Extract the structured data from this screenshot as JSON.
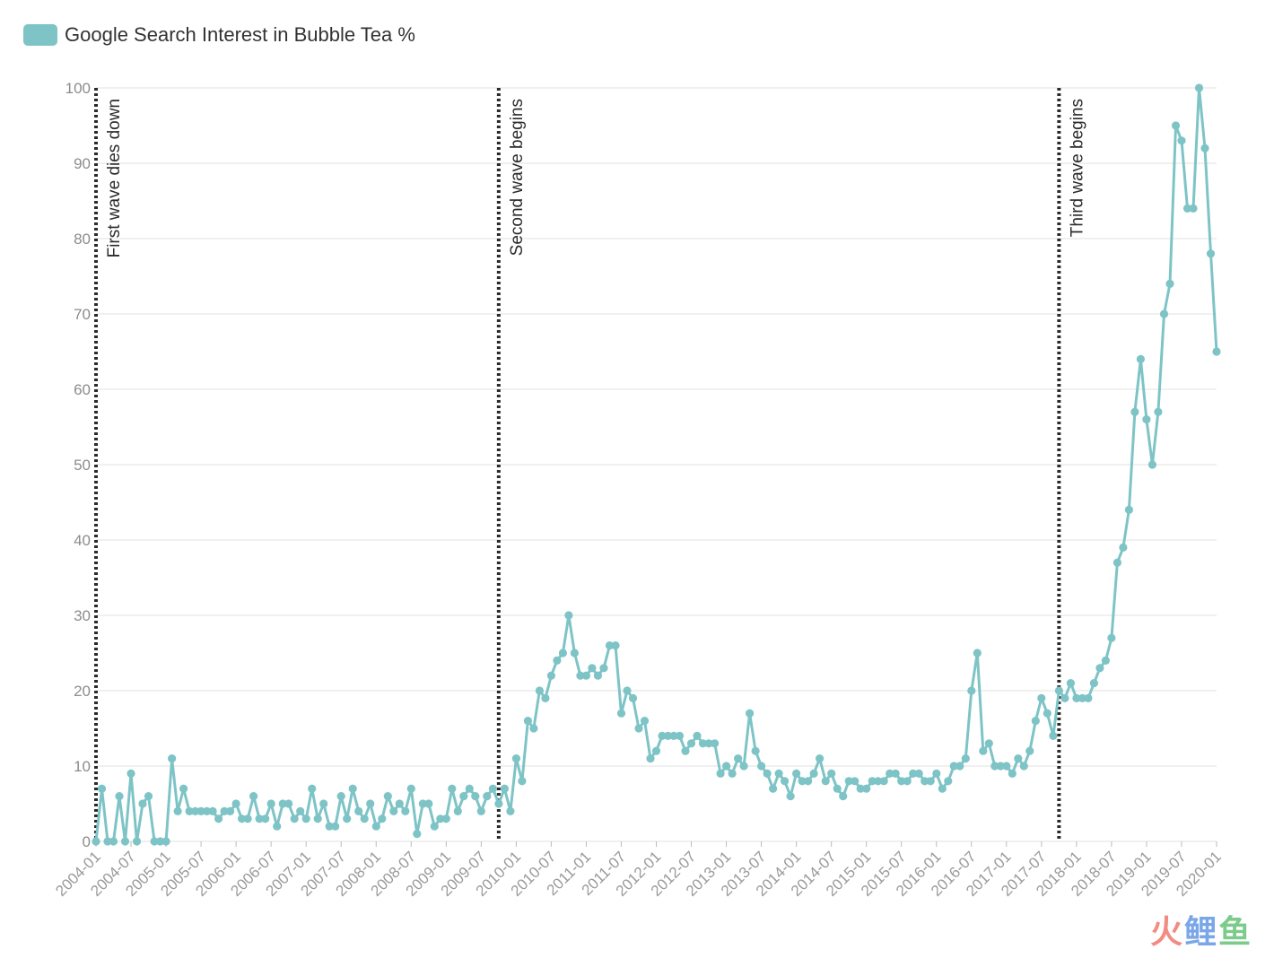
{
  "legend": {
    "label": "Google Search Interest in Bubble Tea %"
  },
  "watermark": {
    "c1": "火",
    "c2": "鲤",
    "c3": "鱼"
  },
  "colors": {
    "series": "#7ec4c6",
    "grid": "#e8e8e8",
    "annotation_line": "#2b2b2b"
  },
  "chart_data": {
    "type": "line",
    "title": "",
    "xlabel": "",
    "ylabel": "",
    "ylim": [
      0,
      100
    ],
    "yticks": [
      0,
      10,
      20,
      30,
      40,
      50,
      60,
      70,
      80,
      90,
      100
    ],
    "grid": true,
    "legend_position": "top-left",
    "x_start": "2004-01",
    "x_end": "2020-01",
    "xticks": [
      "2004-01",
      "2004-07",
      "2005-01",
      "2005-07",
      "2006-01",
      "2006-07",
      "2007-01",
      "2007-07",
      "2008-01",
      "2008-07",
      "2009-01",
      "2009-07",
      "2010-01",
      "2010-07",
      "2011-01",
      "2011-07",
      "2012-01",
      "2012-07",
      "2013-01",
      "2013-07",
      "2014-01",
      "2014-07",
      "2015-01",
      "2015-07",
      "2016-01",
      "2016-07",
      "2017-01",
      "2017-07",
      "2018-01",
      "2018-07",
      "2019-01",
      "2019-07",
      "2020-01"
    ],
    "series": [
      {
        "name": "Google Search Interest in Bubble Tea %",
        "values": [
          0,
          7,
          0,
          0,
          6,
          0,
          9,
          0,
          5,
          6,
          0,
          0,
          0,
          11,
          4,
          7,
          4,
          4,
          4,
          4,
          4,
          3,
          4,
          4,
          5,
          3,
          3,
          6,
          3,
          3,
          5,
          2,
          5,
          5,
          3,
          4,
          3,
          7,
          3,
          5,
          2,
          2,
          6,
          3,
          7,
          4,
          3,
          5,
          2,
          3,
          6,
          4,
          5,
          4,
          7,
          1,
          5,
          5,
          2,
          3,
          3,
          7,
          4,
          6,
          7,
          6,
          4,
          6,
          7,
          5,
          7,
          4,
          11,
          8,
          16,
          15,
          20,
          19,
          22,
          24,
          25,
          30,
          25,
          22,
          22,
          23,
          22,
          23,
          26,
          26,
          17,
          20,
          19,
          15,
          16,
          11,
          12,
          14,
          14,
          14,
          14,
          12,
          13,
          14,
          13,
          13,
          13,
          9,
          10,
          9,
          11,
          10,
          17,
          12,
          10,
          9,
          7,
          9,
          8,
          6,
          9,
          8,
          8,
          9,
          11,
          8,
          9,
          7,
          6,
          8,
          8,
          7,
          7,
          8,
          8,
          8,
          9,
          9,
          8,
          8,
          9,
          9,
          8,
          8,
          9,
          7,
          8,
          10,
          10,
          11,
          20,
          25,
          12,
          13,
          10,
          10,
          10,
          9,
          11,
          10,
          12,
          16,
          19,
          17,
          14,
          20,
          19,
          21,
          19,
          19,
          19,
          21,
          23,
          24,
          27,
          37,
          39,
          44,
          57,
          64,
          56,
          50,
          57,
          70,
          74,
          95,
          93,
          84,
          84,
          100,
          92,
          78,
          65
        ]
      }
    ],
    "annotations": [
      {
        "x": "2004-01",
        "label": "First wave dies down"
      },
      {
        "x": "2009-10",
        "label": "Second wave begins"
      },
      {
        "x": "2017-10",
        "label": "Third wave begins"
      }
    ]
  }
}
